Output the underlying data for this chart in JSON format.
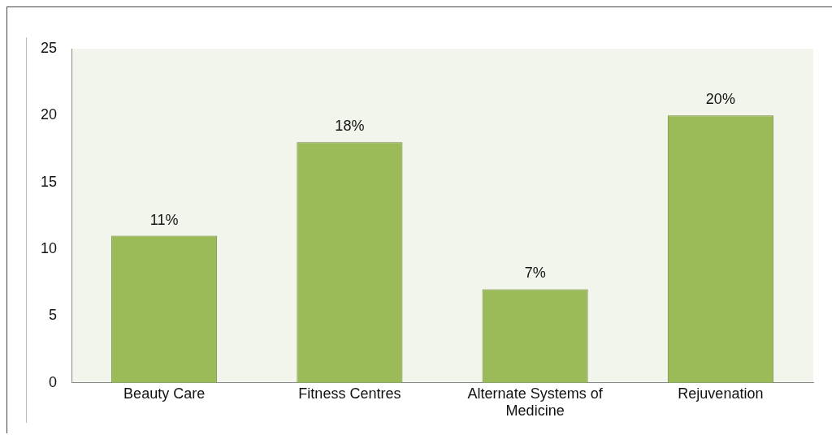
{
  "chart_data": {
    "type": "bar",
    "categories": [
      "Beauty Care",
      "Fitness Centres",
      "Alternate Systems of Medicine",
      "Rejuvenation"
    ],
    "values": [
      11,
      18,
      7,
      20
    ],
    "value_labels": [
      "11%",
      "18%",
      "7%",
      "20%"
    ],
    "color": "#9bbb59",
    "ylim": [
      0,
      25
    ],
    "yticks": [
      0,
      5,
      10,
      15,
      20,
      25
    ],
    "grid": false,
    "legend": false
  }
}
